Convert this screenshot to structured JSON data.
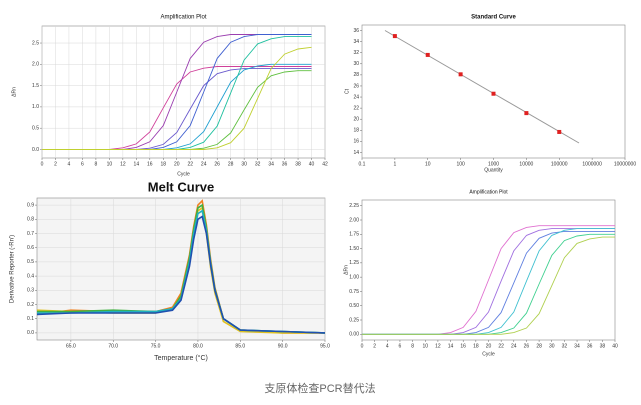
{
  "caption": "支原体检查PCR替代法",
  "chart_data": [
    {
      "type": "line",
      "title": "Amplification Plot",
      "xlabel": "Cycle",
      "ylabel": "ΔRn",
      "xlim": [
        0,
        42
      ],
      "xticks": [
        0,
        2,
        4,
        6,
        8,
        10,
        12,
        14,
        16,
        18,
        20,
        22,
        24,
        26,
        28,
        30,
        32,
        34,
        36,
        38,
        40,
        42
      ],
      "ylim": [
        -0.2,
        2.9
      ],
      "yticks": [
        {
          "value": 0,
          "label": "0.0"
        },
        0.5,
        {
          "value": 1,
          "label": "1.0"
        },
        1.5,
        {
          "value": 2,
          "label": "2.0"
        },
        2.5
      ],
      "grid": true,
      "x": [
        0,
        2,
        4,
        6,
        8,
        10,
        12,
        14,
        16,
        18,
        20,
        22,
        24,
        26,
        28,
        30,
        32,
        34,
        36,
        38,
        40
      ],
      "series": [
        {
          "color": "#d0409a",
          "values": [
            0,
            0,
            0,
            0,
            0,
            0,
            0.04,
            0.13,
            0.41,
            0.98,
            1.54,
            1.82,
            1.91,
            1.95,
            1.95,
            1.95,
            1.95,
            1.95,
            1.95,
            1.95,
            1.95
          ]
        },
        {
          "color": "#9b3fb0",
          "values": [
            0,
            0,
            0,
            0,
            0,
            0,
            0,
            0.05,
            0.18,
            0.56,
            1.35,
            2.14,
            2.52,
            2.65,
            2.7,
            2.7,
            2.7,
            2.7,
            2.7,
            2.7,
            2.7
          ]
        },
        {
          "color": "#6a5acd",
          "values": [
            0,
            0,
            0,
            0,
            0,
            0,
            0,
            0,
            0.03,
            0.12,
            0.4,
            0.95,
            1.5,
            1.78,
            1.87,
            1.9,
            1.9,
            1.9,
            1.9,
            1.9,
            1.9
          ]
        },
        {
          "color": "#4060d0",
          "values": [
            0,
            0,
            0,
            0,
            0,
            0,
            0,
            0,
            0,
            0.05,
            0.18,
            0.56,
            1.35,
            2.14,
            2.52,
            2.65,
            2.7,
            2.7,
            2.7,
            2.7,
            2.7
          ]
        },
        {
          "color": "#20a0d0",
          "values": [
            0,
            0,
            0,
            0,
            0,
            0,
            0,
            0,
            0,
            0,
            0.04,
            0.13,
            0.42,
            1.0,
            1.58,
            1.87,
            1.96,
            2.0,
            2.0,
            2.0,
            2.0
          ]
        },
        {
          "color": "#20c0a0",
          "values": [
            0,
            0,
            0,
            0,
            0,
            0,
            0,
            0,
            0,
            0,
            0,
            0.05,
            0.17,
            0.55,
            1.33,
            2.1,
            2.48,
            2.6,
            2.65,
            2.65,
            2.65
          ]
        },
        {
          "color": "#60c040",
          "values": [
            0,
            0,
            0,
            0,
            0,
            0,
            0,
            0,
            0,
            0,
            0,
            0,
            0.03,
            0.12,
            0.39,
            0.93,
            1.46,
            1.73,
            1.82,
            1.85,
            1.85
          ]
        },
        {
          "color": "#c0d030",
          "values": [
            0,
            0,
            0,
            0,
            0,
            0,
            0,
            0,
            0,
            0,
            0,
            0,
            0,
            0.04,
            0.16,
            0.5,
            1.2,
            1.9,
            2.24,
            2.36,
            2.4
          ]
        }
      ]
    },
    {
      "type": "scatter",
      "title": "Standard Curve",
      "xlabel": "Quantity",
      "ylabel": "Ct",
      "log_x": true,
      "xlim": [
        0.1,
        10000000
      ],
      "xticks": [
        0.1,
        1,
        10,
        100,
        1000,
        10000,
        100000,
        1000000,
        10000000
      ],
      "ylim": [
        13,
        37
      ],
      "yticks": [
        14,
        16,
        18,
        20,
        22,
        24,
        26,
        28,
        30,
        32,
        34,
        36
      ],
      "grid": false,
      "x": [
        1,
        10,
        100,
        1000,
        10000,
        100000
      ],
      "series": [
        {
          "color": "#e02020",
          "values": [
            35.0,
            31.6,
            28.1,
            24.6,
            21.1,
            17.7
          ]
        }
      ],
      "fit_line": {
        "color": "#999999",
        "x": [
          0.5,
          400000
        ],
        "y": [
          36.0,
          15.7
        ]
      }
    },
    {
      "type": "line",
      "title": "Melt Curve",
      "xlabel": "Temperature (°C)",
      "ylabel": "Derivative Reporter (-Rn')",
      "xlim": [
        61,
        95
      ],
      "xticks": [
        {
          "value": 65,
          "label": "65.0"
        },
        {
          "value": 70,
          "label": "70.0"
        },
        {
          "value": 75,
          "label": "75.0"
        },
        {
          "value": 80,
          "label": "80.0"
        },
        {
          "value": 85,
          "label": "85.0"
        },
        {
          "value": 90,
          "label": "90.0"
        },
        {
          "value": 95,
          "label": "95.0"
        }
      ],
      "ylim": [
        -0.05,
        0.95
      ],
      "yticks": [
        {
          "value": 0,
          "label": "0.0"
        },
        0.1,
        0.2,
        0.3,
        0.4,
        0.5,
        0.6,
        0.7,
        0.8,
        0.9
      ],
      "grid": true,
      "x": [
        61,
        65,
        70,
        75,
        77,
        78,
        79,
        79.5,
        80,
        80.5,
        81,
        81.5,
        82,
        83,
        85,
        90,
        95
      ],
      "series": [
        {
          "color": "#f08020",
          "values": [
            0.13,
            0.16,
            0.15,
            0.15,
            0.18,
            0.28,
            0.55,
            0.75,
            0.9,
            0.93,
            0.76,
            0.52,
            0.32,
            0.1,
            0.02,
            0.0,
            0.0
          ]
        },
        {
          "color": "#e0c020",
          "values": [
            0.16,
            0.15,
            0.14,
            0.14,
            0.17,
            0.26,
            0.52,
            0.72,
            0.86,
            0.88,
            0.7,
            0.46,
            0.28,
            0.08,
            0.01,
            0.0,
            0.0
          ]
        },
        {
          "color": "#40b040",
          "values": [
            0.15,
            0.15,
            0.16,
            0.15,
            0.17,
            0.26,
            0.53,
            0.73,
            0.88,
            0.9,
            0.74,
            0.5,
            0.31,
            0.1,
            0.02,
            0.01,
            0.0
          ]
        },
        {
          "color": "#20b0c0",
          "values": [
            0.14,
            0.14,
            0.15,
            0.15,
            0.17,
            0.24,
            0.5,
            0.7,
            0.84,
            0.86,
            0.72,
            0.49,
            0.3,
            0.1,
            0.02,
            0.01,
            0.0
          ]
        },
        {
          "color": "#2050b0",
          "values": [
            0.13,
            0.14,
            0.14,
            0.14,
            0.16,
            0.23,
            0.47,
            0.66,
            0.8,
            0.82,
            0.7,
            0.48,
            0.3,
            0.1,
            0.02,
            0.01,
            0.0
          ]
        }
      ]
    },
    {
      "type": "line",
      "title": "Amplification Plot",
      "xlabel": "Cycle",
      "ylabel": "ΔRn",
      "xlim": [
        0,
        40
      ],
      "xticks": [
        0,
        2,
        4,
        6,
        8,
        10,
        12,
        14,
        16,
        18,
        20,
        22,
        24,
        26,
        28,
        30,
        32,
        34,
        36,
        38,
        40
      ],
      "ylim": [
        -0.1,
        2.35
      ],
      "yticks": [
        {
          "value": 0,
          "label": "0.00"
        },
        {
          "value": 0.25,
          "label": "0.25"
        },
        {
          "value": 0.5,
          "label": "0.50"
        },
        {
          "value": 0.75,
          "label": "0.75"
        },
        {
          "value": 1,
          "label": "1.00"
        },
        {
          "value": 1.25,
          "label": "1.25"
        },
        {
          "value": 1.5,
          "label": "1.50"
        },
        {
          "value": 1.75,
          "label": "1.75"
        },
        {
          "value": 2,
          "label": "2.00"
        },
        {
          "value": 2.25,
          "label": "2.25"
        }
      ],
      "grid": false,
      "x": [
        0,
        2,
        4,
        6,
        8,
        10,
        12,
        14,
        16,
        18,
        20,
        22,
        24,
        26,
        28,
        30,
        32,
        34,
        36,
        38,
        40
      ],
      "series": [
        {
          "color": "#e070d0",
          "values": [
            0,
            0,
            0,
            0,
            0,
            0,
            0,
            0.03,
            0.12,
            0.4,
            0.95,
            1.5,
            1.78,
            1.87,
            1.9,
            1.9,
            1.9,
            1.9,
            1.9,
            1.9,
            1.9
          ]
        },
        {
          "color": "#a070e0",
          "values": [
            0,
            0,
            0,
            0,
            0,
            0,
            0,
            0,
            0.03,
            0.12,
            0.39,
            0.93,
            1.46,
            1.73,
            1.82,
            1.85,
            1.85,
            1.85,
            1.85,
            1.85,
            1.85
          ]
        },
        {
          "color": "#6080e0",
          "values": [
            0,
            0,
            0,
            0,
            0,
            0,
            0,
            0,
            0,
            0.03,
            0.12,
            0.38,
            0.9,
            1.42,
            1.68,
            1.77,
            1.8,
            1.8,
            1.8,
            1.8,
            1.8
          ]
        },
        {
          "color": "#40c0d0",
          "values": [
            0,
            0,
            0,
            0,
            0,
            0,
            0,
            0,
            0,
            0,
            0.03,
            0.12,
            0.39,
            0.93,
            1.46,
            1.73,
            1.82,
            1.85,
            1.85,
            1.85,
            1.85
          ]
        },
        {
          "color": "#40d090",
          "values": [
            0,
            0,
            0,
            0,
            0,
            0,
            0,
            0,
            0,
            0,
            0,
            0.03,
            0.11,
            0.37,
            0.88,
            1.38,
            1.64,
            1.72,
            1.75,
            1.75,
            1.75
          ]
        },
        {
          "color": "#b0d050",
          "values": [
            0,
            0,
            0,
            0,
            0,
            0,
            0,
            0,
            0,
            0,
            0,
            0,
            0.03,
            0.11,
            0.36,
            0.85,
            1.34,
            1.59,
            1.67,
            1.7,
            1.7
          ]
        }
      ]
    }
  ]
}
